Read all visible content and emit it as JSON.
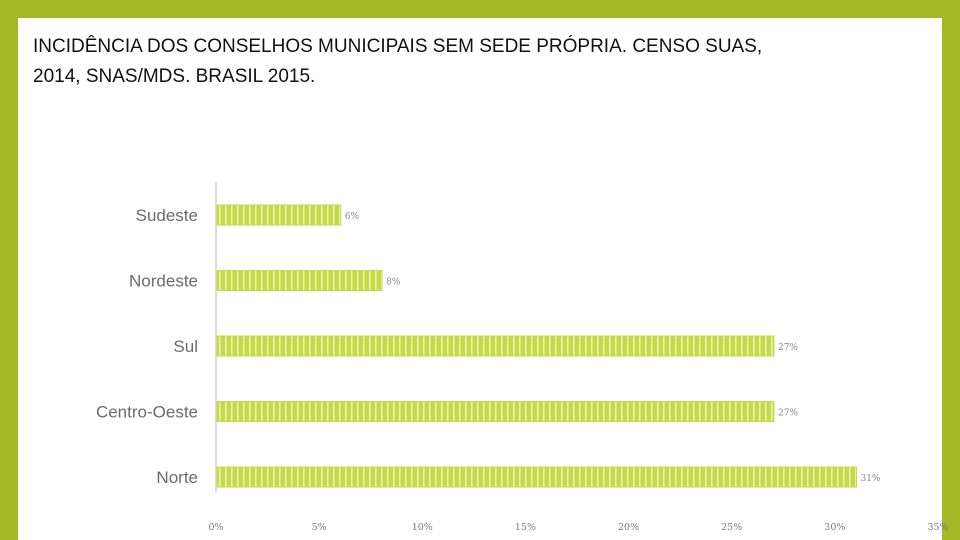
{
  "slide": {
    "title_line1": "INCIDÊNCIA DOS CONSELHOS MUNICIPAIS SEM SEDE PRÓPRIA. CENSO SUAS,",
    "title_line2": "2014, SNAS/MDS. BRASIL 2015."
  },
  "chart_data": {
    "type": "bar",
    "orientation": "horizontal",
    "categories": [
      "Sudeste",
      "Nordeste",
      "Sul",
      "Centro-Oeste",
      "Norte"
    ],
    "values": [
      6,
      8,
      27,
      27,
      31
    ],
    "value_labels": [
      "6%",
      "8%",
      "27%",
      "27%",
      "31%"
    ],
    "x_ticks": [
      "0%",
      "5%",
      "10%",
      "15%",
      "20%",
      "25%",
      "30%",
      "35%"
    ],
    "xlim": [
      0,
      35
    ],
    "grid": false,
    "legend": "none",
    "colors": {
      "bar": "#c5d94a",
      "bar_stripe": "#e9f2a8",
      "axis": "#d9d9d9"
    }
  }
}
